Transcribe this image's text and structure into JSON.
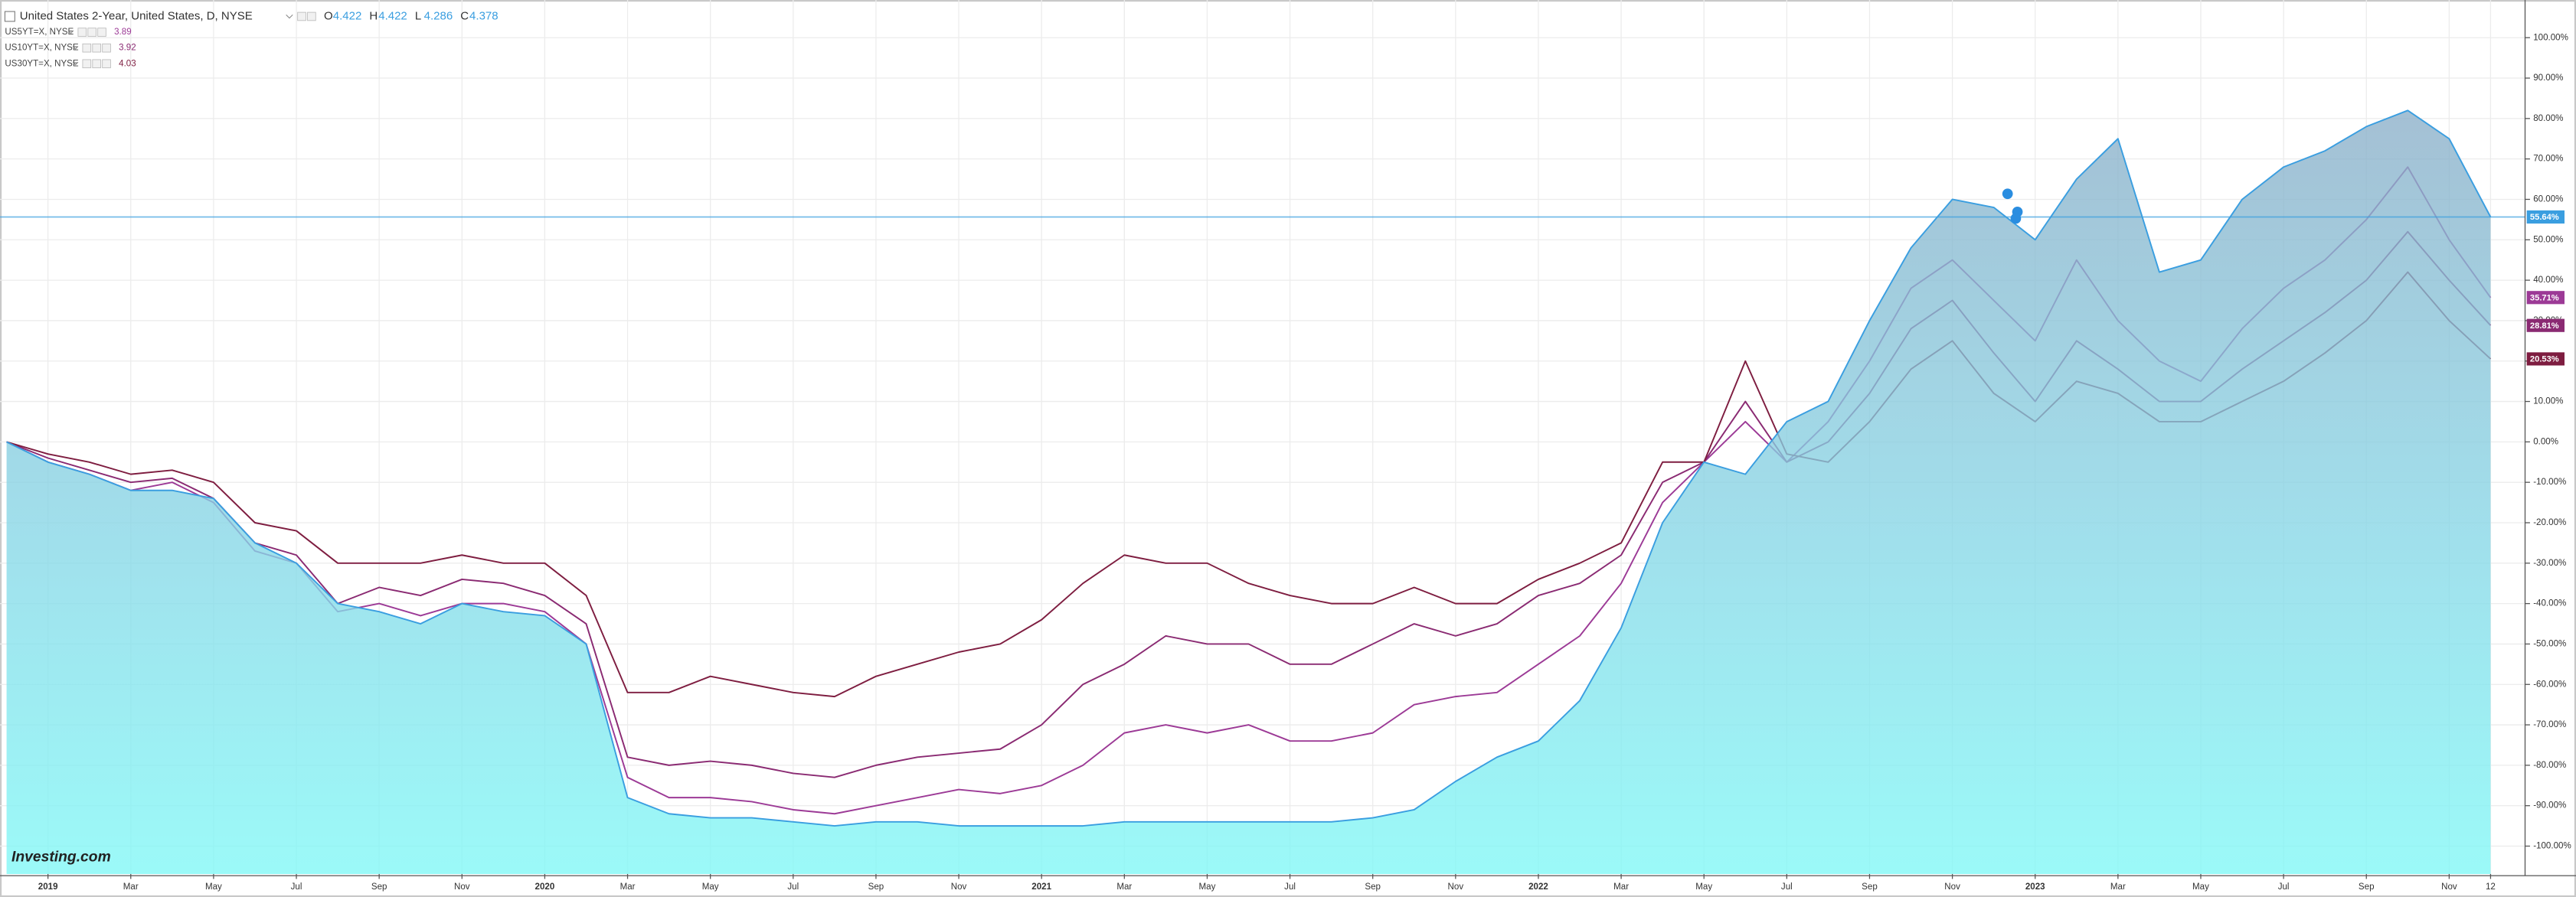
{
  "chart_data": {
    "type": "line",
    "watermark": "Investing.com",
    "x": [
      "2018-12",
      "2019-01",
      "2019-02",
      "2019-03",
      "2019-04",
      "2019-05",
      "2019-06",
      "2019-07",
      "2019-08",
      "2019-09",
      "2019-10",
      "2019-11",
      "2019-12",
      "2020-01",
      "2020-02",
      "2020-03",
      "2020-04",
      "2020-05",
      "2020-06",
      "2020-07",
      "2020-08",
      "2020-09",
      "2020-10",
      "2020-11",
      "2020-12",
      "2021-01",
      "2021-02",
      "2021-03",
      "2021-04",
      "2021-05",
      "2021-06",
      "2021-07",
      "2021-08",
      "2021-09",
      "2021-10",
      "2021-11",
      "2021-12",
      "2022-01",
      "2022-02",
      "2022-03",
      "2022-04",
      "2022-05",
      "2022-06",
      "2022-07",
      "2022-08",
      "2022-09",
      "2022-10",
      "2022-11",
      "2022-12",
      "2023-01",
      "2023-02",
      "2023-03",
      "2023-04",
      "2023-05",
      "2023-06",
      "2023-07",
      "2023-08",
      "2023-09",
      "2023-10",
      "2023-11",
      "2023-12"
    ],
    "xlim": [
      "2018-12",
      "2023-12"
    ],
    "xticks": [
      {
        "value": "2019-01",
        "label": "2019"
      },
      {
        "value": "2019-03",
        "label": "Mar"
      },
      {
        "value": "2019-05",
        "label": "May"
      },
      {
        "value": "2019-07",
        "label": "Jul"
      },
      {
        "value": "2019-09",
        "label": "Sep"
      },
      {
        "value": "2019-11",
        "label": "Nov"
      },
      {
        "value": "2020-01",
        "label": "2020"
      },
      {
        "value": "2020-03",
        "label": "Mar"
      },
      {
        "value": "2020-05",
        "label": "May"
      },
      {
        "value": "2020-07",
        "label": "Jul"
      },
      {
        "value": "2020-09",
        "label": "Sep"
      },
      {
        "value": "2020-11",
        "label": "Nov"
      },
      {
        "value": "2021-01",
        "label": "2021"
      },
      {
        "value": "2021-03",
        "label": "Mar"
      },
      {
        "value": "2021-05",
        "label": "May"
      },
      {
        "value": "2021-07",
        "label": "Jul"
      },
      {
        "value": "2021-09",
        "label": "Sep"
      },
      {
        "value": "2021-11",
        "label": "Nov"
      },
      {
        "value": "2022-01",
        "label": "2022"
      },
      {
        "value": "2022-03",
        "label": "Mar"
      },
      {
        "value": "2022-05",
        "label": "May"
      },
      {
        "value": "2022-07",
        "label": "Jul"
      },
      {
        "value": "2022-09",
        "label": "Sep"
      },
      {
        "value": "2022-11",
        "label": "Nov"
      },
      {
        "value": "2023-01",
        "label": "2023"
      },
      {
        "value": "2023-03",
        "label": "Mar"
      },
      {
        "value": "2023-05",
        "label": "May"
      },
      {
        "value": "2023-07",
        "label": "Jul"
      },
      {
        "value": "2023-09",
        "label": "Sep"
      },
      {
        "value": "2023-11",
        "label": "Nov"
      },
      {
        "value": "2023-12",
        "label": "12"
      }
    ],
    "ylim": [
      -106.9,
      108.1
    ],
    "yticks": [
      {
        "value": -100,
        "label": "-100.00%"
      },
      {
        "value": -90,
        "label": "-90.00%"
      },
      {
        "value": -80,
        "label": "-80.00%"
      },
      {
        "value": -70,
        "label": "-70.00%"
      },
      {
        "value": -60,
        "label": "-60.00%"
      },
      {
        "value": -50,
        "label": "-50.00%"
      },
      {
        "value": -40,
        "label": "-40.00%"
      },
      {
        "value": -30,
        "label": "-30.00%"
      },
      {
        "value": -20,
        "label": "-20.00%"
      },
      {
        "value": -10,
        "label": "-10.00%"
      },
      {
        "value": 0,
        "label": "0.00%"
      },
      {
        "value": 10,
        "label": "10.00%"
      },
      {
        "value": 20,
        "label": "20.00%"
      },
      {
        "value": 30,
        "label": "30.00%"
      },
      {
        "value": 40,
        "label": "40.00%"
      },
      {
        "value": 50,
        "label": "50.00%"
      },
      {
        "value": 60,
        "label": "60.00%"
      },
      {
        "value": 70,
        "label": "70.00%"
      },
      {
        "value": 80,
        "label": "80.00%"
      },
      {
        "value": 90,
        "label": "90.00%"
      },
      {
        "value": 100,
        "label": "100.00%"
      }
    ],
    "grid": true,
    "series": [
      {
        "name": "United States 2-Year, United States, D, NYSE",
        "color": "#3a9ee0",
        "area": true,
        "quote": [
          {
            "label": "O",
            "value": 4.422
          },
          {
            "label": "H",
            "value": 4.422
          },
          {
            "label": "L",
            "value": 4.286
          },
          {
            "label": "C",
            "value": 4.378
          }
        ],
        "values": [
          0,
          -5,
          -8,
          -12,
          -12,
          -14,
          -25,
          -30,
          -40,
          -42,
          -45,
          -40,
          -42,
          -43,
          -50,
          -88,
          -92,
          -93,
          -93,
          -94,
          -95,
          -94,
          -94,
          -95,
          -95,
          -95,
          -95,
          -94,
          -94,
          -94,
          -94,
          -94,
          -94,
          -93,
          -91,
          -84,
          -78,
          -74,
          -64,
          -46,
          -20,
          -5,
          -8,
          5,
          10,
          30,
          48,
          60,
          58,
          50,
          65,
          75,
          42,
          45,
          60,
          68,
          72,
          78,
          82,
          75,
          55.64
        ],
        "value_labels": [
          null,
          null,
          null,
          null,
          null,
          null,
          null,
          null,
          null,
          null,
          null,
          null,
          null,
          null,
          null,
          null,
          null,
          null,
          null,
          null,
          null,
          null,
          null,
          null,
          null,
          null,
          null,
          null,
          null,
          null,
          null,
          null,
          null,
          null,
          null,
          null,
          null,
          null,
          null,
          null,
          null,
          null,
          null,
          null,
          null,
          null,
          null,
          null,
          null,
          null,
          null,
          null,
          null,
          null,
          null,
          null,
          null,
          null,
          null,
          null,
          "55.64%"
        ]
      },
      {
        "name": "US5YT=X, NYSE",
        "color": "#9c3a96",
        "quote": 3.89,
        "values": [
          0,
          -5,
          -8,
          -12,
          -10,
          -15,
          -27,
          -30,
          -42,
          -40,
          -43,
          -40,
          -40,
          -42,
          -50,
          -83,
          -88,
          -88,
          -89,
          -91,
          -92,
          -90,
          -88,
          -86,
          -87,
          -85,
          -80,
          -72,
          -70,
          -72,
          -70,
          -74,
          -74,
          -72,
          -65,
          -63,
          -62,
          -55,
          -48,
          -35,
          -15,
          -5,
          5,
          -5,
          5,
          20,
          38,
          45,
          35,
          25,
          45,
          30,
          20,
          15,
          28,
          38,
          45,
          55,
          68,
          50,
          35.71
        ],
        "value_labels": [
          null,
          null,
          null,
          null,
          null,
          null,
          null,
          null,
          null,
          null,
          null,
          null,
          null,
          null,
          null,
          null,
          null,
          null,
          null,
          null,
          null,
          null,
          null,
          null,
          null,
          null,
          null,
          null,
          null,
          null,
          null,
          null,
          null,
          null,
          null,
          null,
          null,
          null,
          null,
          null,
          null,
          null,
          null,
          null,
          null,
          null,
          null,
          null,
          null,
          null,
          null,
          null,
          null,
          null,
          null,
          null,
          null,
          null,
          null,
          null,
          "35.71%"
        ]
      },
      {
        "name": "US10YT=X, NYSE",
        "color": "#8a2a72",
        "quote": 3.92,
        "values": [
          0,
          -4,
          -7,
          -10,
          -9,
          -14,
          -25,
          -28,
          -40,
          -36,
          -38,
          -34,
          -35,
          -38,
          -45,
          -78,
          -80,
          -79,
          -80,
          -82,
          -83,
          -80,
          -78,
          -77,
          -76,
          -70,
          -60,
          -55,
          -48,
          -50,
          -50,
          -55,
          -55,
          -50,
          -45,
          -48,
          -45,
          -38,
          -35,
          -28,
          -10,
          -5,
          10,
          -5,
          0,
          12,
          28,
          35,
          22,
          10,
          25,
          18,
          10,
          10,
          18,
          25,
          32,
          40,
          52,
          40,
          28.81
        ],
        "value_labels": [
          null,
          null,
          null,
          null,
          null,
          null,
          null,
          null,
          null,
          null,
          null,
          null,
          null,
          null,
          null,
          null,
          null,
          null,
          null,
          null,
          null,
          null,
          null,
          null,
          null,
          null,
          null,
          null,
          null,
          null,
          null,
          null,
          null,
          null,
          null,
          null,
          null,
          null,
          null,
          null,
          null,
          null,
          null,
          null,
          null,
          null,
          null,
          null,
          null,
          null,
          null,
          null,
          null,
          null,
          null,
          null,
          null,
          null,
          null,
          null,
          "28.81%"
        ]
      },
      {
        "name": "US30YT=X, NYSE",
        "color": "#7e1d40",
        "quote": 4.03,
        "values": [
          0,
          -3,
          -5,
          -8,
          -7,
          -10,
          -20,
          -22,
          -30,
          -30,
          -30,
          -28,
          -30,
          -30,
          -38,
          -62,
          -62,
          -58,
          -60,
          -62,
          -63,
          -58,
          -55,
          -52,
          -50,
          -44,
          -35,
          -28,
          -30,
          -30,
          -35,
          -38,
          -40,
          -40,
          -36,
          -40,
          -40,
          -34,
          -30,
          -25,
          -5,
          -5,
          20,
          -3,
          -5,
          5,
          18,
          25,
          12,
          5,
          15,
          12,
          5,
          5,
          10,
          15,
          22,
          30,
          42,
          30,
          20.53
        ],
        "value_labels": [
          null,
          null,
          null,
          null,
          null,
          null,
          null,
          null,
          null,
          null,
          null,
          null,
          null,
          null,
          null,
          null,
          null,
          null,
          null,
          null,
          null,
          null,
          null,
          null,
          null,
          null,
          null,
          null,
          null,
          null,
          null,
          null,
          null,
          null,
          null,
          null,
          null,
          null,
          null,
          null,
          null,
          null,
          null,
          null,
          null,
          null,
          null,
          null,
          null,
          null,
          null,
          null,
          null,
          null,
          null,
          null,
          null,
          null,
          null,
          null,
          "20.53%"
        ]
      }
    ]
  }
}
